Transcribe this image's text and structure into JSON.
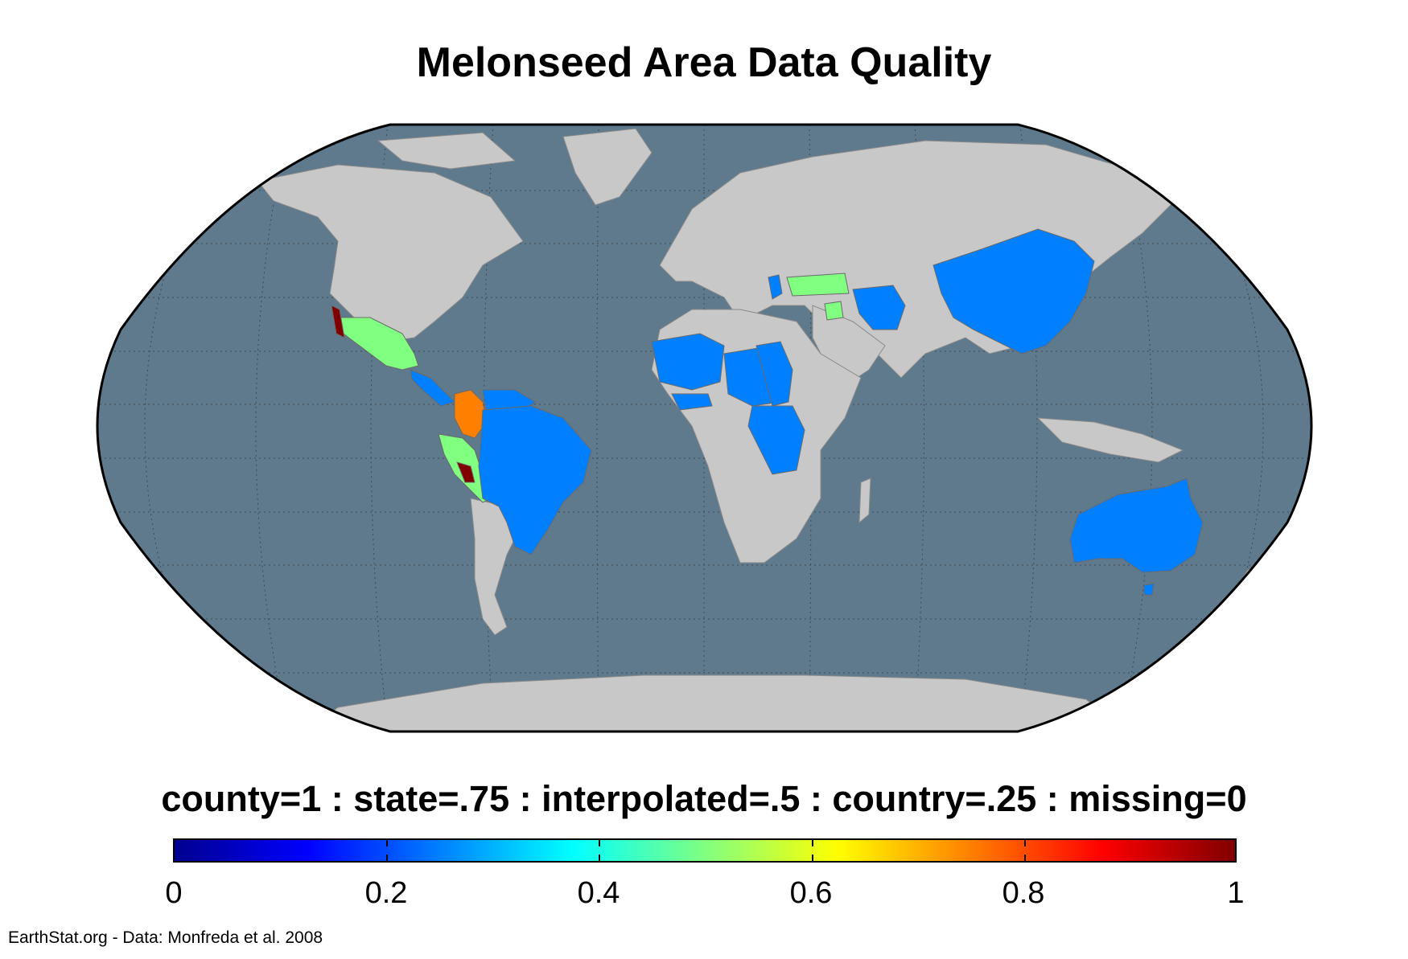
{
  "title": "Melonseed Area Data Quality",
  "legend_caption": "county=1 : state=.75 : interpolated=.5 : country=.25 : missing=0",
  "colorbar": {
    "min": 0,
    "max": 1,
    "ticks": [
      "0",
      "0.2",
      "0.4",
      "0.6",
      "0.8",
      "1"
    ],
    "colormap": "jet",
    "colors": [
      "#00008f",
      "#0000ff",
      "#0080ff",
      "#00ffff",
      "#80ff80",
      "#ffff00",
      "#ff8000",
      "#ff0000",
      "#800000"
    ]
  },
  "credit": "EarthStat.org - Data: Monfreda et al. 2008",
  "map": {
    "projection": "Robinson",
    "ocean_color": "#5f7a8c",
    "land_no_data_color": "#c8c8c8",
    "regions": [
      {
        "name": "Mexico",
        "value": 0.5
      },
      {
        "name": "Baja California",
        "value": 1
      },
      {
        "name": "Central America",
        "value": 0.25
      },
      {
        "name": "Colombia",
        "value": 0.75
      },
      {
        "name": "Venezuela",
        "value": 0.25
      },
      {
        "name": "Ecuador",
        "value": 0.5
      },
      {
        "name": "Peru",
        "value": 0.5
      },
      {
        "name": "Peru (north)",
        "value": 1
      },
      {
        "name": "Brazil",
        "value": 0.25
      },
      {
        "name": "Bolivia",
        "value": 0.25
      },
      {
        "name": "Paraguay",
        "value": 0.25
      },
      {
        "name": "Uruguay",
        "value": 0.25
      },
      {
        "name": "Turkey",
        "value": 0.5
      },
      {
        "name": "Greece",
        "value": 0.25
      },
      {
        "name": "Syria",
        "value": 0.5
      },
      {
        "name": "Iran",
        "value": 0.25
      },
      {
        "name": "China",
        "value": 0.25
      },
      {
        "name": "Mali",
        "value": 0.25
      },
      {
        "name": "Senegal",
        "value": 0.25
      },
      {
        "name": "Niger",
        "value": 0.25
      },
      {
        "name": "Chad",
        "value": 0.25
      },
      {
        "name": "Sudan",
        "value": 0.25
      },
      {
        "name": "Nigeria",
        "value": 0.25
      },
      {
        "name": "Cameroon",
        "value": 0.25
      },
      {
        "name": "Central African Republic",
        "value": 0.25
      },
      {
        "name": "DR Congo",
        "value": 0.25
      },
      {
        "name": "Ghana",
        "value": 0.25
      },
      {
        "name": "Ivory Coast",
        "value": 0.25
      },
      {
        "name": "Australia",
        "value": 0.25
      }
    ]
  }
}
